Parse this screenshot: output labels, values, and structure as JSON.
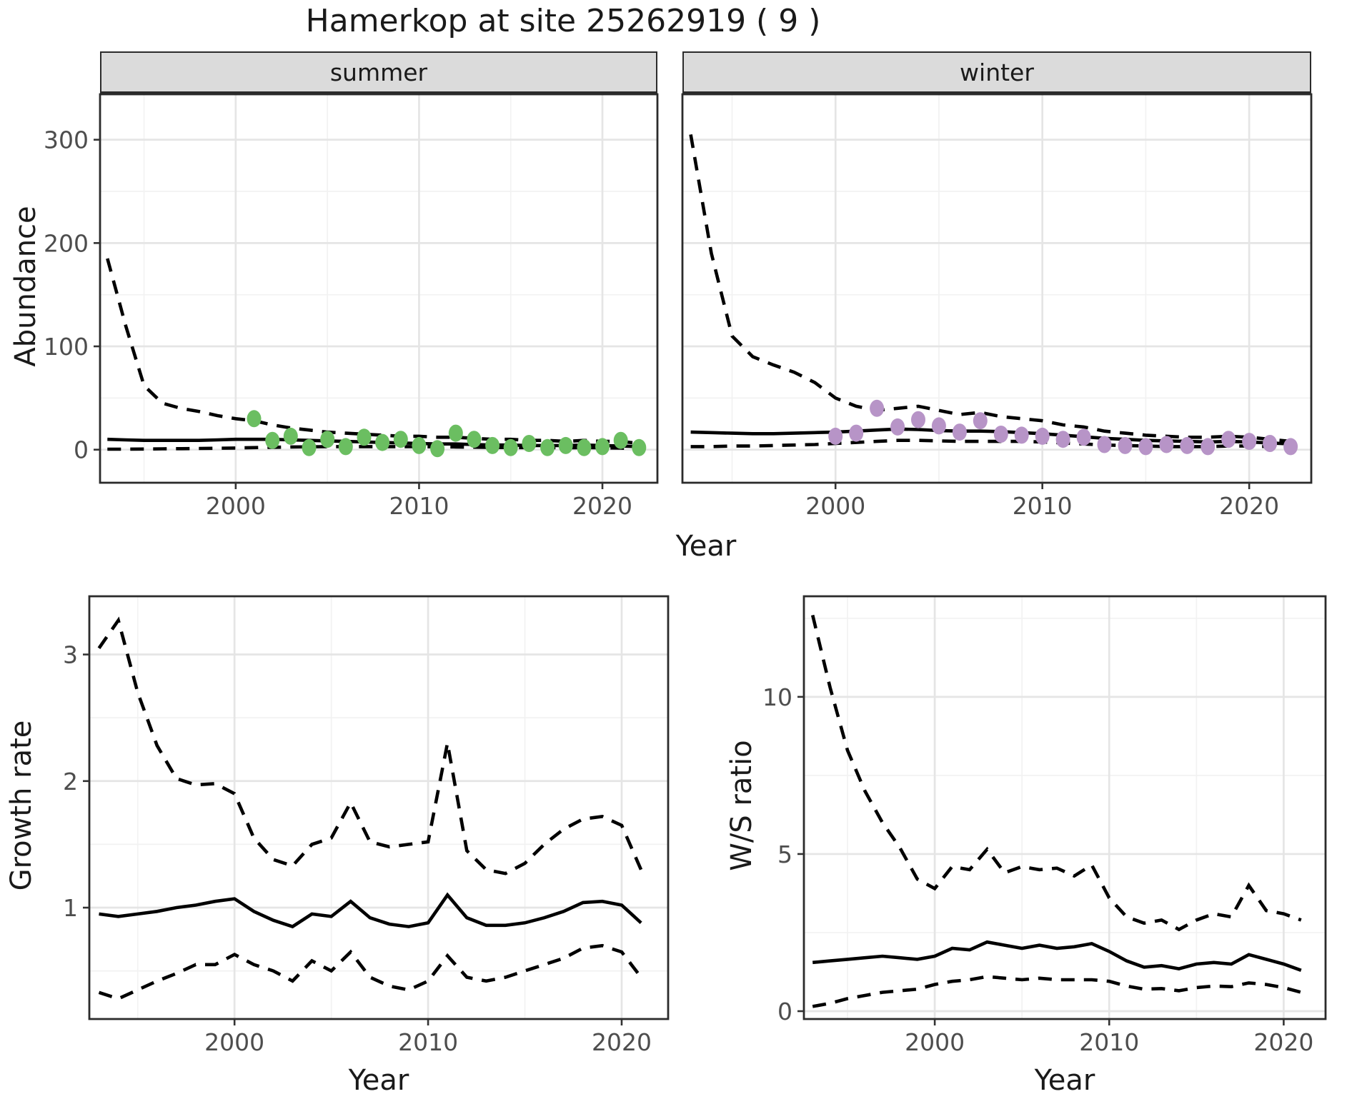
{
  "chart_data": {
    "type": "line",
    "title": "Hamerkop at site 25262919 ( 9 )",
    "palette": {
      "summer_point": "#6BBE61",
      "winter_point": "#B794C7",
      "line": "#000000",
      "strip_bg": "#DBDBDB",
      "strip_border": "#2B2B2B",
      "panel_border": "#2B2B2B",
      "grid_major": "#E5E5E5",
      "grid_minor": "#F2F2F2",
      "tick_color": "#333333",
      "tick_label": "#4D4D4D",
      "text": "#1A1A1A"
    },
    "top_row": {
      "ylabel": "Abundance",
      "xlabel": "Year",
      "xticks": [
        2000,
        2010,
        2020
      ],
      "yticks": [
        0,
        100,
        200,
        300
      ],
      "xlim": [
        1992.6,
        2023.0
      ],
      "ylim": [
        -32,
        344
      ],
      "years": [
        1993,
        1994,
        1995,
        1996,
        1997,
        1998,
        1999,
        2000,
        2001,
        2002,
        2003,
        2004,
        2005,
        2006,
        2007,
        2008,
        2009,
        2010,
        2011,
        2012,
        2013,
        2014,
        2015,
        2016,
        2017,
        2018,
        2019,
        2020,
        2021,
        2022
      ],
      "facets": [
        {
          "label": "summer",
          "point_color": "#6BBE61",
          "upper_ci": [
            185,
            120,
            62,
            45,
            40,
            37,
            33,
            30,
            28,
            24,
            21,
            19,
            17,
            16,
            15,
            14,
            13,
            13,
            12,
            12,
            11,
            10,
            10,
            9,
            9,
            8,
            9,
            8,
            8,
            6
          ],
          "median": [
            10,
            9.5,
            9,
            9,
            9,
            9,
            9.5,
            10,
            10,
            10,
            9.5,
            9,
            8.5,
            8,
            7.5,
            7,
            6.5,
            6,
            5.5,
            5.5,
            5,
            4.5,
            4.5,
            4,
            4,
            4,
            4.5,
            4,
            3.5,
            3
          ],
          "lower_ci": [
            0.5,
            0.5,
            0.6,
            0.8,
            1,
            1.2,
            1.4,
            1.6,
            2,
            2.3,
            2.6,
            2.8,
            3,
            3,
            3,
            3,
            3,
            3,
            2.8,
            2.6,
            2.4,
            2.2,
            2,
            2,
            2,
            1.8,
            2,
            1.8,
            1.5,
            1
          ],
          "obs_years": [
            2001,
            2002,
            2003,
            2004,
            2005,
            2006,
            2007,
            2008,
            2009,
            2010,
            2011,
            2012,
            2013,
            2014,
            2015,
            2016,
            2017,
            2018,
            2019,
            2020,
            2021,
            2022
          ],
          "obs": [
            30,
            9,
            13,
            2,
            10,
            3,
            12,
            7,
            10,
            4,
            1,
            16,
            10,
            4,
            2,
            6,
            2,
            4,
            2,
            3,
            9,
            2
          ]
        },
        {
          "label": "winter",
          "point_color": "#B794C7",
          "upper_ci": [
            305,
            190,
            110,
            90,
            82,
            75,
            65,
            50,
            42,
            38,
            40,
            42,
            38,
            34,
            36,
            32,
            30,
            28,
            24,
            22,
            18,
            16,
            14,
            13,
            12,
            12,
            13,
            12,
            10,
            8
          ],
          "median": [
            17,
            16.5,
            16,
            15.5,
            15.5,
            16,
            16.5,
            17,
            18,
            19,
            20,
            19.5,
            18.5,
            18,
            18,
            17.5,
            16.5,
            15.5,
            14,
            12.5,
            11,
            10,
            9,
            8.5,
            8,
            7.5,
            8,
            7.5,
            6.5,
            5.5
          ],
          "lower_ci": [
            3,
            3,
            3.5,
            3.5,
            4,
            4.5,
            5,
            6,
            7,
            8,
            9,
            9,
            8.5,
            8,
            8,
            8,
            8,
            7.5,
            6.5,
            5.5,
            4.5,
            4,
            3.5,
            3,
            3,
            3,
            3.5,
            3.5,
            3,
            2.5
          ],
          "obs_years": [
            2000,
            2001,
            2002,
            2003,
            2004,
            2005,
            2006,
            2007,
            2008,
            2009,
            2010,
            2011,
            2012,
            2013,
            2014,
            2015,
            2016,
            2017,
            2018,
            2019,
            2020,
            2021,
            2022
          ],
          "obs": [
            13,
            16,
            40,
            22,
            29,
            23,
            17,
            28,
            15,
            14,
            13,
            10,
            12,
            5,
            4,
            3,
            5,
            4,
            3,
            10,
            8,
            6,
            3
          ]
        }
      ]
    },
    "growth": {
      "ylabel": "Growth rate",
      "xlabel": "Year",
      "xticks": [
        2000,
        2010,
        2020
      ],
      "yticks": [
        1,
        2,
        3
      ],
      "xlim": [
        1992.5,
        2022.4
      ],
      "ylim": [
        0.12,
        3.46
      ],
      "years": [
        1993,
        1994,
        1995,
        1996,
        1997,
        1998,
        1999,
        2000,
        2001,
        2002,
        2003,
        2004,
        2005,
        2006,
        2007,
        2008,
        2009,
        2010,
        2011,
        2012,
        2013,
        2014,
        2015,
        2016,
        2017,
        2018,
        2019,
        2020,
        2021
      ],
      "upper_ci": [
        3.05,
        3.27,
        2.7,
        2.28,
        2.02,
        1.97,
        1.98,
        1.9,
        1.55,
        1.38,
        1.33,
        1.5,
        1.55,
        1.83,
        1.52,
        1.48,
        1.5,
        1.52,
        2.3,
        1.45,
        1.3,
        1.27,
        1.35,
        1.5,
        1.62,
        1.7,
        1.72,
        1.65,
        1.3
      ],
      "median": [
        0.95,
        0.93,
        0.95,
        0.97,
        1.0,
        1.02,
        1.05,
        1.07,
        0.97,
        0.9,
        0.85,
        0.95,
        0.93,
        1.05,
        0.92,
        0.87,
        0.85,
        0.88,
        1.1,
        0.92,
        0.86,
        0.86,
        0.88,
        0.92,
        0.97,
        1.04,
        1.05,
        1.02,
        0.88
      ],
      "lower_ci": [
        0.33,
        0.28,
        0.35,
        0.42,
        0.48,
        0.55,
        0.55,
        0.63,
        0.55,
        0.5,
        0.42,
        0.58,
        0.5,
        0.65,
        0.45,
        0.38,
        0.35,
        0.42,
        0.62,
        0.45,
        0.42,
        0.45,
        0.5,
        0.55,
        0.6,
        0.68,
        0.7,
        0.65,
        0.45
      ]
    },
    "ws_ratio": {
      "ylabel": "W/S ratio",
      "xlabel": "Year",
      "xticks": [
        2000,
        2010,
        2020
      ],
      "yticks": [
        0,
        5,
        10
      ],
      "xlim": [
        1992.5,
        2022.4
      ],
      "ylim": [
        -0.25,
        13.2
      ],
      "years": [
        1993,
        1994,
        1995,
        1996,
        1997,
        1998,
        1999,
        2000,
        2001,
        2002,
        2003,
        2004,
        2005,
        2006,
        2007,
        2008,
        2009,
        2010,
        2011,
        2012,
        2013,
        2014,
        2015,
        2016,
        2017,
        2018,
        2019,
        2020,
        2021
      ],
      "upper_ci": [
        12.6,
        10.3,
        8.3,
        7.0,
        6.0,
        5.2,
        4.2,
        3.9,
        4.6,
        4.5,
        5.15,
        4.4,
        4.6,
        4.5,
        4.55,
        4.3,
        4.65,
        3.6,
        3.0,
        2.8,
        2.9,
        2.6,
        2.9,
        3.1,
        3.0,
        4.0,
        3.2,
        3.1,
        2.9
      ],
      "median": [
        1.55,
        1.6,
        1.65,
        1.7,
        1.75,
        1.7,
        1.65,
        1.75,
        2.0,
        1.95,
        2.2,
        2.1,
        2.0,
        2.1,
        2.0,
        2.05,
        2.15,
        1.9,
        1.6,
        1.4,
        1.45,
        1.35,
        1.5,
        1.55,
        1.5,
        1.8,
        1.65,
        1.5,
        1.3
      ],
      "lower_ci": [
        0.15,
        0.25,
        0.4,
        0.5,
        0.6,
        0.65,
        0.7,
        0.85,
        0.95,
        1.0,
        1.1,
        1.05,
        1.0,
        1.05,
        1.0,
        1.0,
        1.0,
        0.95,
        0.8,
        0.7,
        0.72,
        0.65,
        0.75,
        0.8,
        0.78,
        0.9,
        0.85,
        0.75,
        0.6
      ]
    }
  }
}
